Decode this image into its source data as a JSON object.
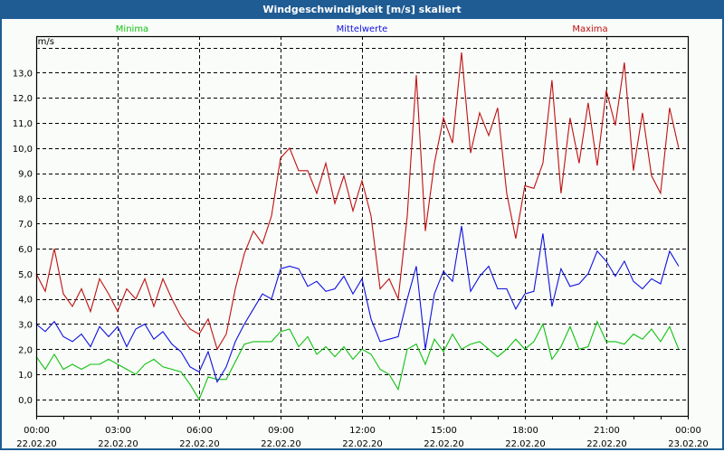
{
  "window": {
    "title": "Windgeschwindigkeit [m/s] skaliert"
  },
  "chart_data": {
    "type": "line",
    "title": "Windgeschwindigkeit [m/s] skaliert",
    "ylabel": "m/s",
    "xlabel": "",
    "ylim": [
      -0.65,
      14.45
    ],
    "xlim_hours": [
      0,
      24
    ],
    "grid": true,
    "y_ticks": [
      "0,0",
      "1,0",
      "2,0",
      "3,0",
      "4,0",
      "5,0",
      "6,0",
      "7,0",
      "8,0",
      "9,0",
      "10,0",
      "11,0",
      "12,0",
      "13,0"
    ],
    "x_ticks": [
      {
        "time": "00:00",
        "date": "22.02.20"
      },
      {
        "time": "03:00",
        "date": "22.02.20"
      },
      {
        "time": "06:00",
        "date": "22.02.20"
      },
      {
        "time": "09:00",
        "date": "22.02.20"
      },
      {
        "time": "12:00",
        "date": "22.02.20"
      },
      {
        "time": "15:00",
        "date": "22.02.20"
      },
      {
        "time": "18:00",
        "date": "22.02.20"
      },
      {
        "time": "21:00",
        "date": "22.02.20"
      },
      {
        "time": "00:00",
        "date": "23.02.20"
      }
    ],
    "x_start_hours": 0,
    "x_step_hours": 0.3333,
    "series": [
      {
        "name": "Minima",
        "color": "#10c010",
        "legend": "top-left",
        "values": [
          1.7,
          1.2,
          1.8,
          1.2,
          1.4,
          1.2,
          1.4,
          1.4,
          1.6,
          1.4,
          1.2,
          1.0,
          1.4,
          1.6,
          1.3,
          1.2,
          1.1,
          0.6,
          0.0,
          0.9,
          0.8,
          0.8,
          1.5,
          2.2,
          2.3,
          2.3,
          2.3,
          2.7,
          2.8,
          2.1,
          2.5,
          1.8,
          2.1,
          1.7,
          2.1,
          1.6,
          2.0,
          1.8,
          1.2,
          1.0,
          0.4,
          2.0,
          2.2,
          1.4,
          2.4,
          1.9,
          2.6,
          2.0,
          2.2,
          2.3,
          2.0,
          1.7,
          2.0,
          2.4,
          2.0,
          2.3,
          3.0,
          1.6,
          2.1,
          2.9,
          2.0,
          2.1,
          3.1,
          2.3,
          2.3,
          2.2,
          2.6,
          2.4,
          2.8,
          2.3,
          2.9,
          2.0
        ]
      },
      {
        "name": "Mittelwerte",
        "color": "#1010e0",
        "legend": "top-center",
        "values": [
          3.0,
          2.7,
          3.1,
          2.5,
          2.3,
          2.6,
          2.1,
          2.9,
          2.5,
          2.9,
          2.1,
          2.8,
          3.0,
          2.4,
          2.7,
          2.2,
          1.9,
          1.3,
          1.1,
          1.9,
          0.7,
          1.3,
          2.3,
          3.0,
          3.6,
          4.2,
          4.0,
          5.2,
          5.3,
          5.2,
          4.5,
          4.7,
          4.3,
          4.4,
          4.9,
          4.2,
          4.8,
          3.2,
          2.3,
          2.4,
          2.5,
          4.0,
          5.3,
          2.0,
          4.2,
          5.1,
          4.7,
          6.9,
          4.3,
          4.9,
          5.3,
          4.4,
          4.4,
          3.6,
          4.2,
          4.3,
          6.6,
          3.7,
          5.2,
          4.5,
          4.6,
          5.0,
          5.9,
          5.5,
          4.9,
          5.5,
          4.7,
          4.4,
          4.8,
          4.6,
          5.9,
          5.3
        ]
      },
      {
        "name": "Maxima",
        "color": "#c01010",
        "legend": "top-right",
        "values": [
          5.0,
          4.3,
          6.0,
          4.2,
          3.7,
          4.4,
          3.5,
          4.8,
          4.2,
          3.5,
          4.4,
          4.0,
          4.8,
          3.7,
          4.8,
          4.0,
          3.3,
          2.8,
          2.6,
          3.2,
          2.0,
          2.6,
          4.4,
          5.8,
          6.7,
          6.2,
          7.3,
          9.6,
          10.0,
          9.1,
          9.1,
          8.2,
          9.4,
          7.8,
          8.9,
          7.5,
          8.7,
          7.3,
          4.4,
          4.8,
          4.0,
          7.3,
          12.9,
          6.7,
          9.4,
          11.2,
          10.2,
          13.8,
          9.8,
          11.4,
          10.5,
          11.6,
          8.2,
          6.4,
          8.5,
          8.4,
          9.4,
          12.7,
          8.2,
          11.2,
          9.4,
          11.8,
          9.3,
          12.3,
          10.9,
          13.4,
          9.1,
          11.4,
          8.9,
          8.2,
          11.6,
          10.0
        ]
      }
    ]
  }
}
